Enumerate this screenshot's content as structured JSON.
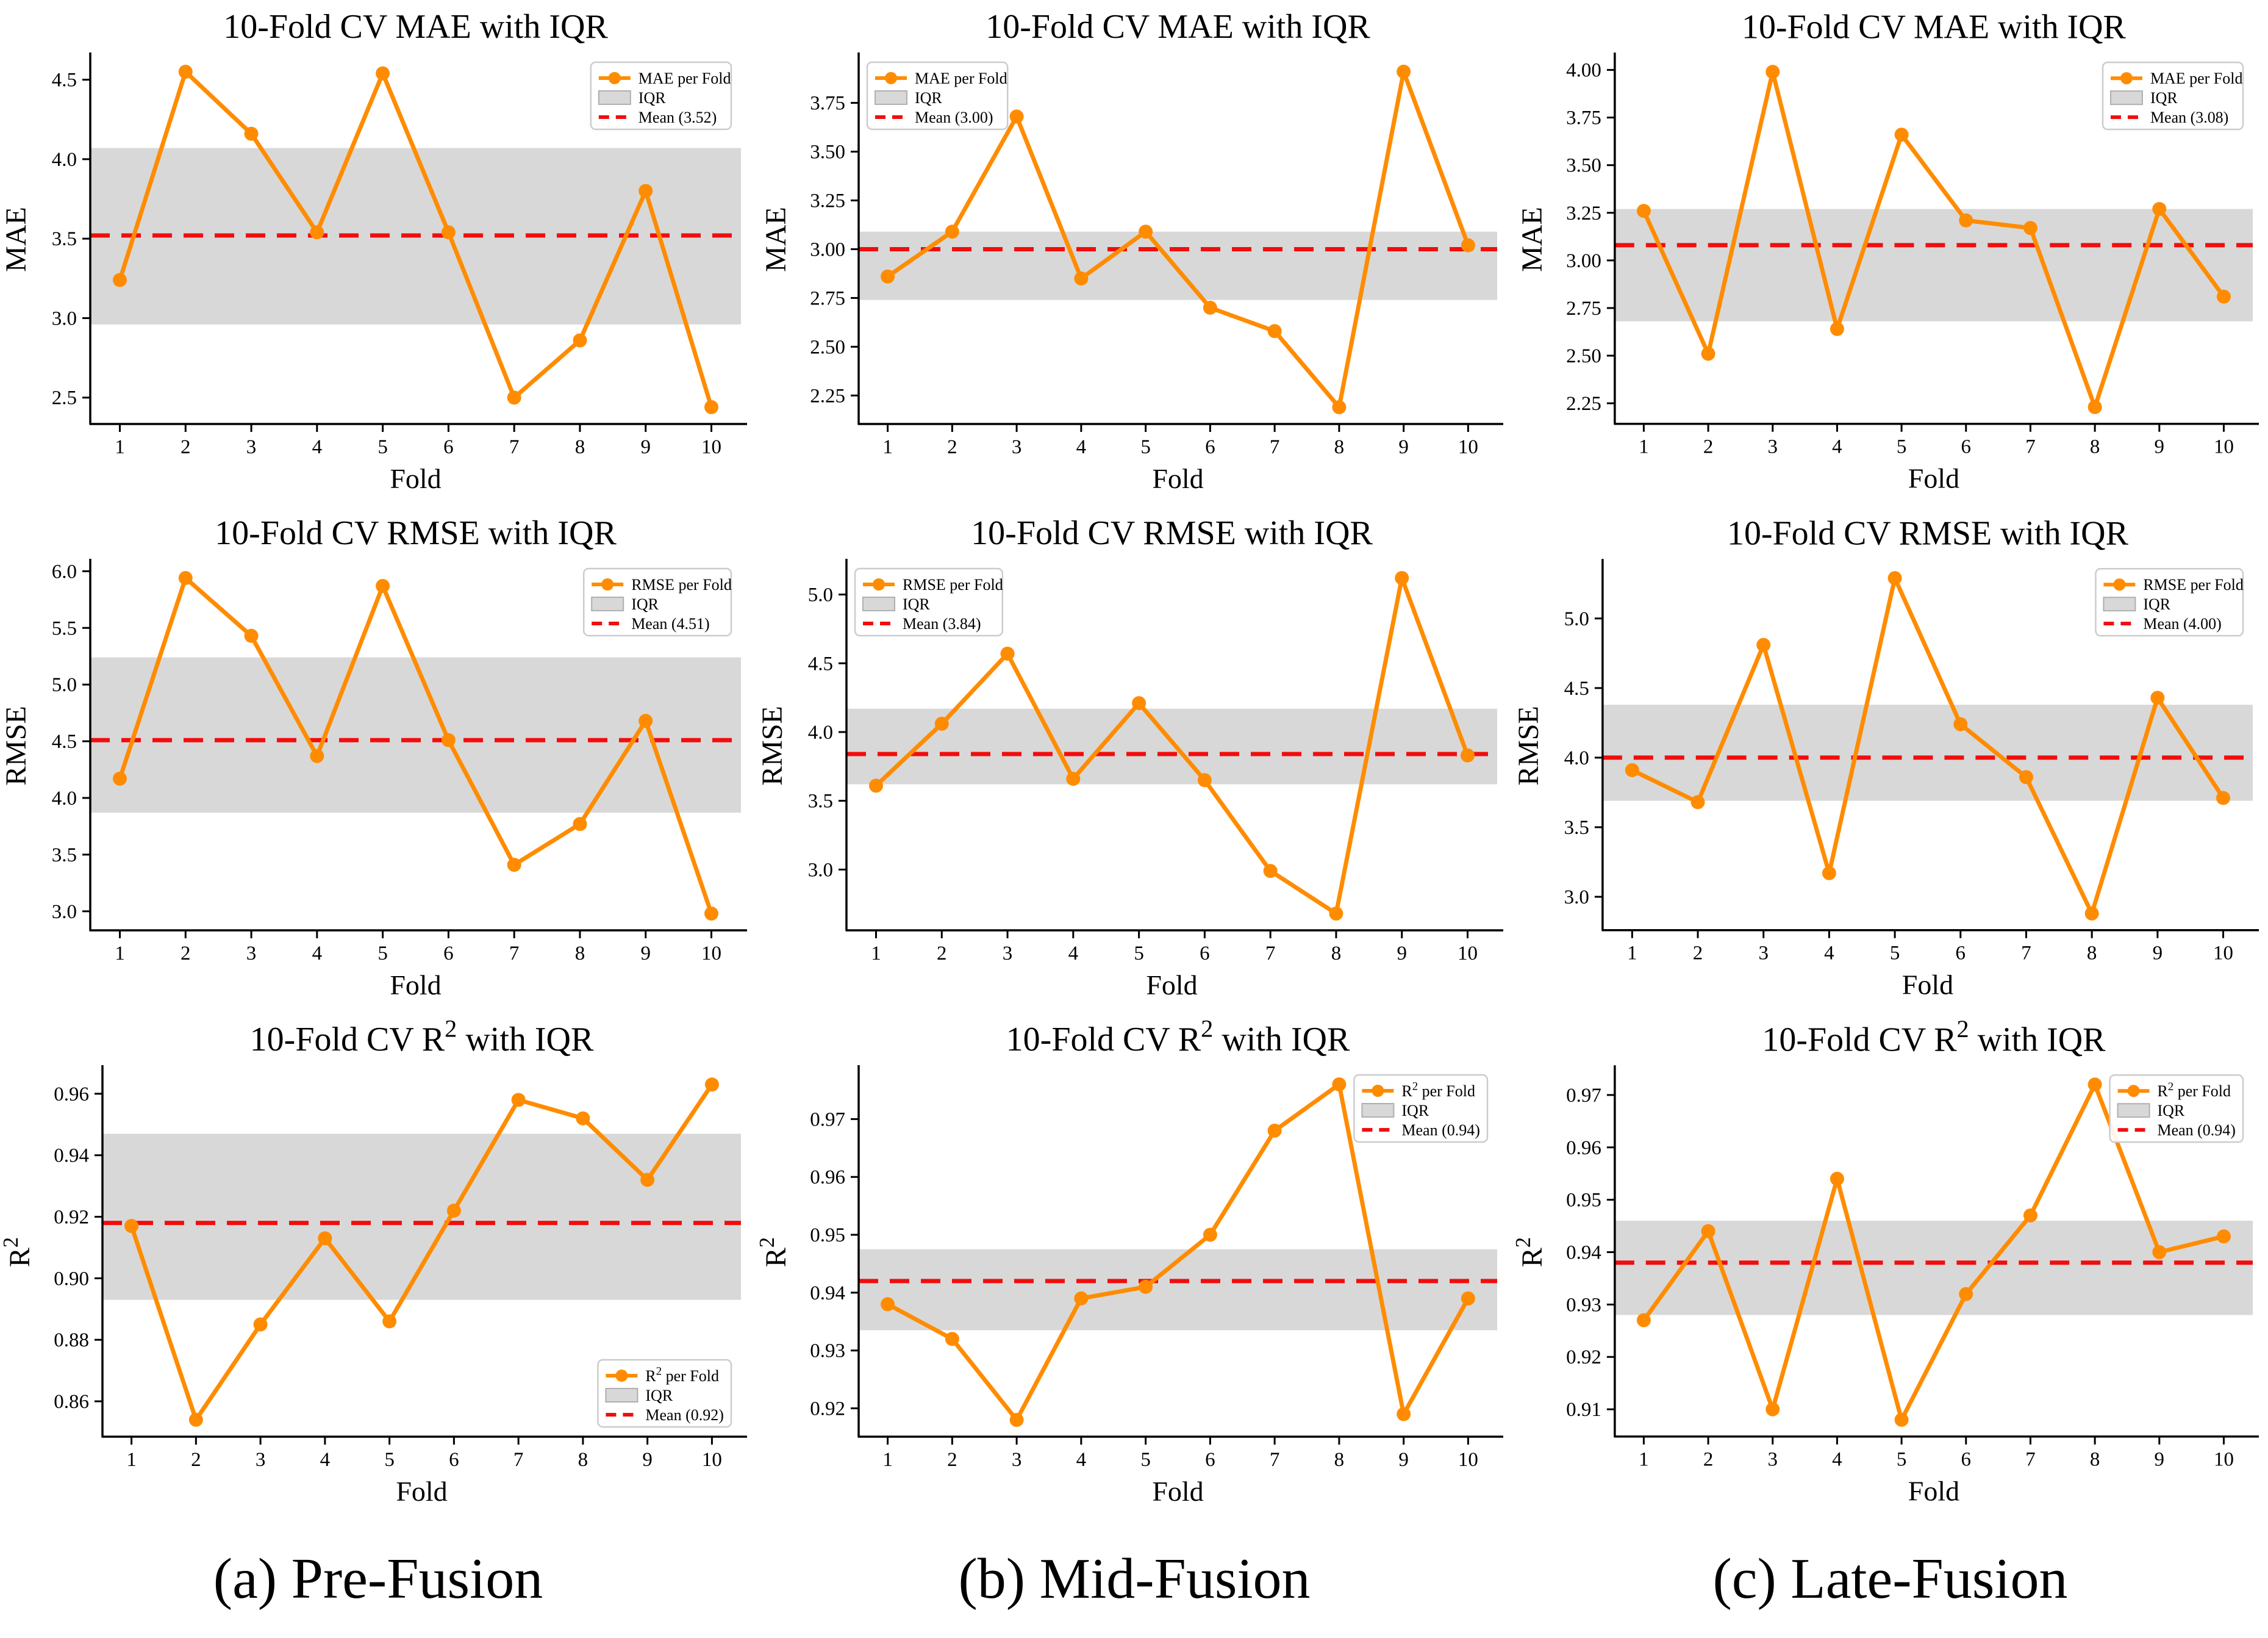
{
  "figure": {
    "captions": [
      "(a) Pre-Fusion",
      "(b) Mid-Fusion",
      "(c) Late-Fusion"
    ]
  },
  "style": {
    "series_orange": "#FF8C00",
    "mean_red": "#F20D0D",
    "iqr_gray": "#D8D8D8",
    "iqr_edge": "#AFAFAF",
    "legend_border": "#CCCCCC",
    "text_black": "#000000"
  },
  "chart_data": [
    {
      "id": "pre-fusion-mae",
      "type": "line",
      "title": "10-Fold CV MAE with IQR",
      "xlabel": "Fold",
      "ylabel": "MAE",
      "x": [
        1,
        2,
        3,
        4,
        5,
        6,
        7,
        8,
        9,
        10
      ],
      "series": [
        {
          "name": "MAE per Fold",
          "values": [
            3.24,
            4.55,
            4.16,
            3.54,
            4.54,
            3.54,
            2.5,
            2.86,
            3.8,
            2.44
          ]
        }
      ],
      "iqr": {
        "label": "IQR",
        "low": 2.96,
        "high": 4.07
      },
      "mean": {
        "label": "Mean (3.52)",
        "value": 3.52
      },
      "xlim": [
        0.55,
        10.45
      ],
      "ylim": [
        2.334,
        4.656
      ],
      "yticks": [
        "2.5",
        "3.0",
        "3.5",
        "4.0",
        "4.5"
      ],
      "grid": false,
      "legend_pos": "upper-right"
    },
    {
      "id": "mid-fusion-mae",
      "type": "line",
      "title": "10-Fold CV MAE with IQR",
      "xlabel": "Fold",
      "ylabel": "MAE",
      "x": [
        1,
        2,
        3,
        4,
        5,
        6,
        7,
        8,
        9,
        10
      ],
      "series": [
        {
          "name": "MAE per Fold",
          "values": [
            2.86,
            3.09,
            3.68,
            2.85,
            3.09,
            2.7,
            2.58,
            2.19,
            3.91,
            3.02
          ]
        }
      ],
      "iqr": {
        "label": "IQR",
        "low": 2.74,
        "high": 3.09
      },
      "mean": {
        "label": "Mean (3.00)",
        "value": 3.0
      },
      "xlim": [
        0.55,
        10.45
      ],
      "ylim": [
        2.104,
        3.996
      ],
      "yticks": [
        "2.25",
        "2.50",
        "2.75",
        "3.00",
        "3.25",
        "3.50",
        "3.75"
      ],
      "grid": false,
      "legend_pos": "upper-left"
    },
    {
      "id": "late-fusion-mae",
      "type": "line",
      "title": "10-Fold CV MAE with IQR",
      "xlabel": "Fold",
      "ylabel": "MAE",
      "x": [
        1,
        2,
        3,
        4,
        5,
        6,
        7,
        8,
        9,
        10
      ],
      "series": [
        {
          "name": "MAE per Fold",
          "values": [
            3.26,
            2.51,
            3.99,
            2.64,
            3.66,
            3.21,
            3.17,
            2.23,
            3.27,
            2.81
          ]
        }
      ],
      "iqr": {
        "label": "IQR",
        "low": 2.68,
        "high": 3.27
      },
      "mean": {
        "label": "Mean (3.08)",
        "value": 3.08
      },
      "xlim": [
        0.55,
        10.45
      ],
      "ylim": [
        2.142,
        4.078
      ],
      "yticks": [
        "2.25",
        "2.50",
        "2.75",
        "3.00",
        "3.25",
        "3.50",
        "3.75",
        "4.00"
      ],
      "grid": false,
      "legend_pos": "upper-right"
    },
    {
      "id": "pre-fusion-rmse",
      "type": "line",
      "title": "10-Fold CV RMSE with IQR",
      "xlabel": "Fold",
      "ylabel": "RMSE",
      "x": [
        1,
        2,
        3,
        4,
        5,
        6,
        7,
        8,
        9,
        10
      ],
      "series": [
        {
          "name": "RMSE per Fold",
          "values": [
            4.17,
            5.94,
            5.43,
            4.37,
            5.87,
            4.51,
            3.41,
            3.77,
            4.68,
            2.98
          ]
        }
      ],
      "iqr": {
        "label": "IQR",
        "low": 3.87,
        "high": 5.24
      },
      "mean": {
        "label": "Mean (4.51)",
        "value": 4.51
      },
      "xlim": [
        0.55,
        10.45
      ],
      "ylim": [
        2.832,
        6.088
      ],
      "yticks": [
        "3.0",
        "3.5",
        "4.0",
        "4.5",
        "5.0",
        "5.5",
        "6.0"
      ],
      "grid": false,
      "legend_pos": "upper-right"
    },
    {
      "id": "mid-fusion-rmse",
      "type": "line",
      "title": "10-Fold CV RMSE with IQR",
      "xlabel": "Fold",
      "ylabel": "RMSE",
      "x": [
        1,
        2,
        3,
        4,
        5,
        6,
        7,
        8,
        9,
        10
      ],
      "series": [
        {
          "name": "RMSE per Fold",
          "values": [
            3.61,
            4.06,
            4.57,
            3.66,
            4.21,
            3.65,
            2.99,
            2.68,
            5.12,
            3.83
          ]
        }
      ],
      "iqr": {
        "label": "IQR",
        "low": 3.62,
        "high": 4.17
      },
      "mean": {
        "label": "Mean (3.84)",
        "value": 3.84
      },
      "xlim": [
        0.55,
        10.45
      ],
      "ylim": [
        2.558,
        5.242
      ],
      "yticks": [
        "3.0",
        "3.5",
        "4.0",
        "4.5",
        "5.0"
      ],
      "grid": false,
      "legend_pos": "upper-left"
    },
    {
      "id": "late-fusion-rmse",
      "type": "line",
      "title": "10-Fold CV RMSE with IQR",
      "xlabel": "Fold",
      "ylabel": "RMSE",
      "x": [
        1,
        2,
        3,
        4,
        5,
        6,
        7,
        8,
        9,
        10
      ],
      "series": [
        {
          "name": "RMSE per Fold",
          "values": [
            3.91,
            3.68,
            4.81,
            3.17,
            5.29,
            4.24,
            3.86,
            2.88,
            4.43,
            3.71
          ]
        }
      ],
      "iqr": {
        "label": "IQR",
        "low": 3.69,
        "high": 4.38
      },
      "mean": {
        "label": "Mean (4.00)",
        "value": 4.0
      },
      "xlim": [
        0.55,
        10.45
      ],
      "ylim": [
        2.76,
        5.41
      ],
      "yticks": [
        "3.0",
        "3.5",
        "4.0",
        "4.5",
        "5.0"
      ],
      "grid": false,
      "legend_pos": "upper-right"
    },
    {
      "id": "pre-fusion-r2",
      "type": "line",
      "title": "10-Fold CV R² with IQR",
      "xlabel": "Fold",
      "ylabel": "R²",
      "x": [
        1,
        2,
        3,
        4,
        5,
        6,
        7,
        8,
        9,
        10
      ],
      "series": [
        {
          "name": "R² per Fold",
          "values": [
            0.917,
            0.854,
            0.885,
            0.913,
            0.886,
            0.922,
            0.958,
            0.952,
            0.932,
            0.963
          ]
        }
      ],
      "iqr": {
        "label": "IQR",
        "low": 0.893,
        "high": 0.947
      },
      "mean": {
        "label": "Mean (0.92)",
        "value": 0.918
      },
      "xlim": [
        0.55,
        10.45
      ],
      "ylim": [
        0.8485,
        0.9685
      ],
      "yticks": [
        "0.86",
        "0.88",
        "0.90",
        "0.92",
        "0.94",
        "0.96"
      ],
      "grid": false,
      "legend_pos": "lower-right"
    },
    {
      "id": "mid-fusion-r2",
      "type": "line",
      "title": "10-Fold CV R² with IQR",
      "xlabel": "Fold",
      "ylabel": "R²",
      "x": [
        1,
        2,
        3,
        4,
        5,
        6,
        7,
        8,
        9,
        10
      ],
      "series": [
        {
          "name": "R² per Fold",
          "values": [
            0.938,
            0.932,
            0.918,
            0.939,
            0.941,
            0.95,
            0.968,
            0.976,
            0.919,
            0.939
          ]
        }
      ],
      "iqr": {
        "label": "IQR",
        "low": 0.9335,
        "high": 0.9475
      },
      "mean": {
        "label": "Mean (0.94)",
        "value": 0.942
      },
      "xlim": [
        0.55,
        10.45
      ],
      "ylim": [
        0.9151,
        0.9789
      ],
      "yticks": [
        "0.92",
        "0.93",
        "0.94",
        "0.95",
        "0.96",
        "0.97"
      ],
      "grid": false,
      "legend_pos": "upper-right"
    },
    {
      "id": "late-fusion-r2",
      "type": "line",
      "title": "10-Fold CV R² with IQR",
      "xlabel": "Fold",
      "ylabel": "R²",
      "x": [
        1,
        2,
        3,
        4,
        5,
        6,
        7,
        8,
        9,
        10
      ],
      "series": [
        {
          "name": "R² per Fold",
          "values": [
            0.927,
            0.944,
            0.91,
            0.954,
            0.908,
            0.932,
            0.947,
            0.972,
            0.94,
            0.943
          ]
        }
      ],
      "iqr": {
        "label": "IQR",
        "low": 0.928,
        "high": 0.946
      },
      "mean": {
        "label": "Mean (0.94)",
        "value": 0.938
      },
      "xlim": [
        0.55,
        10.45
      ],
      "ylim": [
        0.9048,
        0.9752
      ],
      "yticks": [
        "0.91",
        "0.92",
        "0.93",
        "0.94",
        "0.95",
        "0.96",
        "0.97"
      ],
      "grid": false,
      "legend_pos": "upper-right"
    }
  ]
}
